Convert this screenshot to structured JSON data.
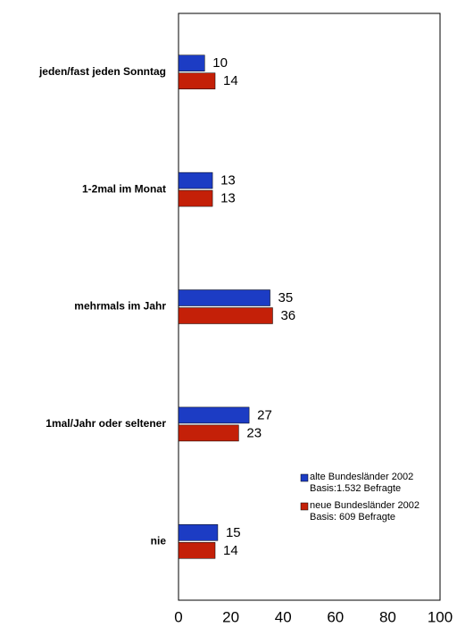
{
  "chart_data": {
    "type": "bar",
    "orientation": "horizontal",
    "categories": [
      "jeden/fast jeden Sonntag",
      "1-2mal im Monat",
      "mehrmals im Jahr",
      "1mal/Jahr oder seltener",
      "nie"
    ],
    "series": [
      {
        "name": "alte Bundesländer 2002\nBasis:1.532 Befragte",
        "color": "#1c3cc4",
        "values": [
          10,
          13,
          35,
          27,
          15
        ]
      },
      {
        "name": "neue Bundesländer 2002\nBasis: 609 Befragte",
        "color": "#c42008",
        "values": [
          14,
          13,
          36,
          23,
          14
        ]
      }
    ],
    "xlim": [
      0,
      100
    ],
    "xticks": [
      0,
      20,
      40,
      60,
      80,
      100
    ],
    "grid": false
  }
}
